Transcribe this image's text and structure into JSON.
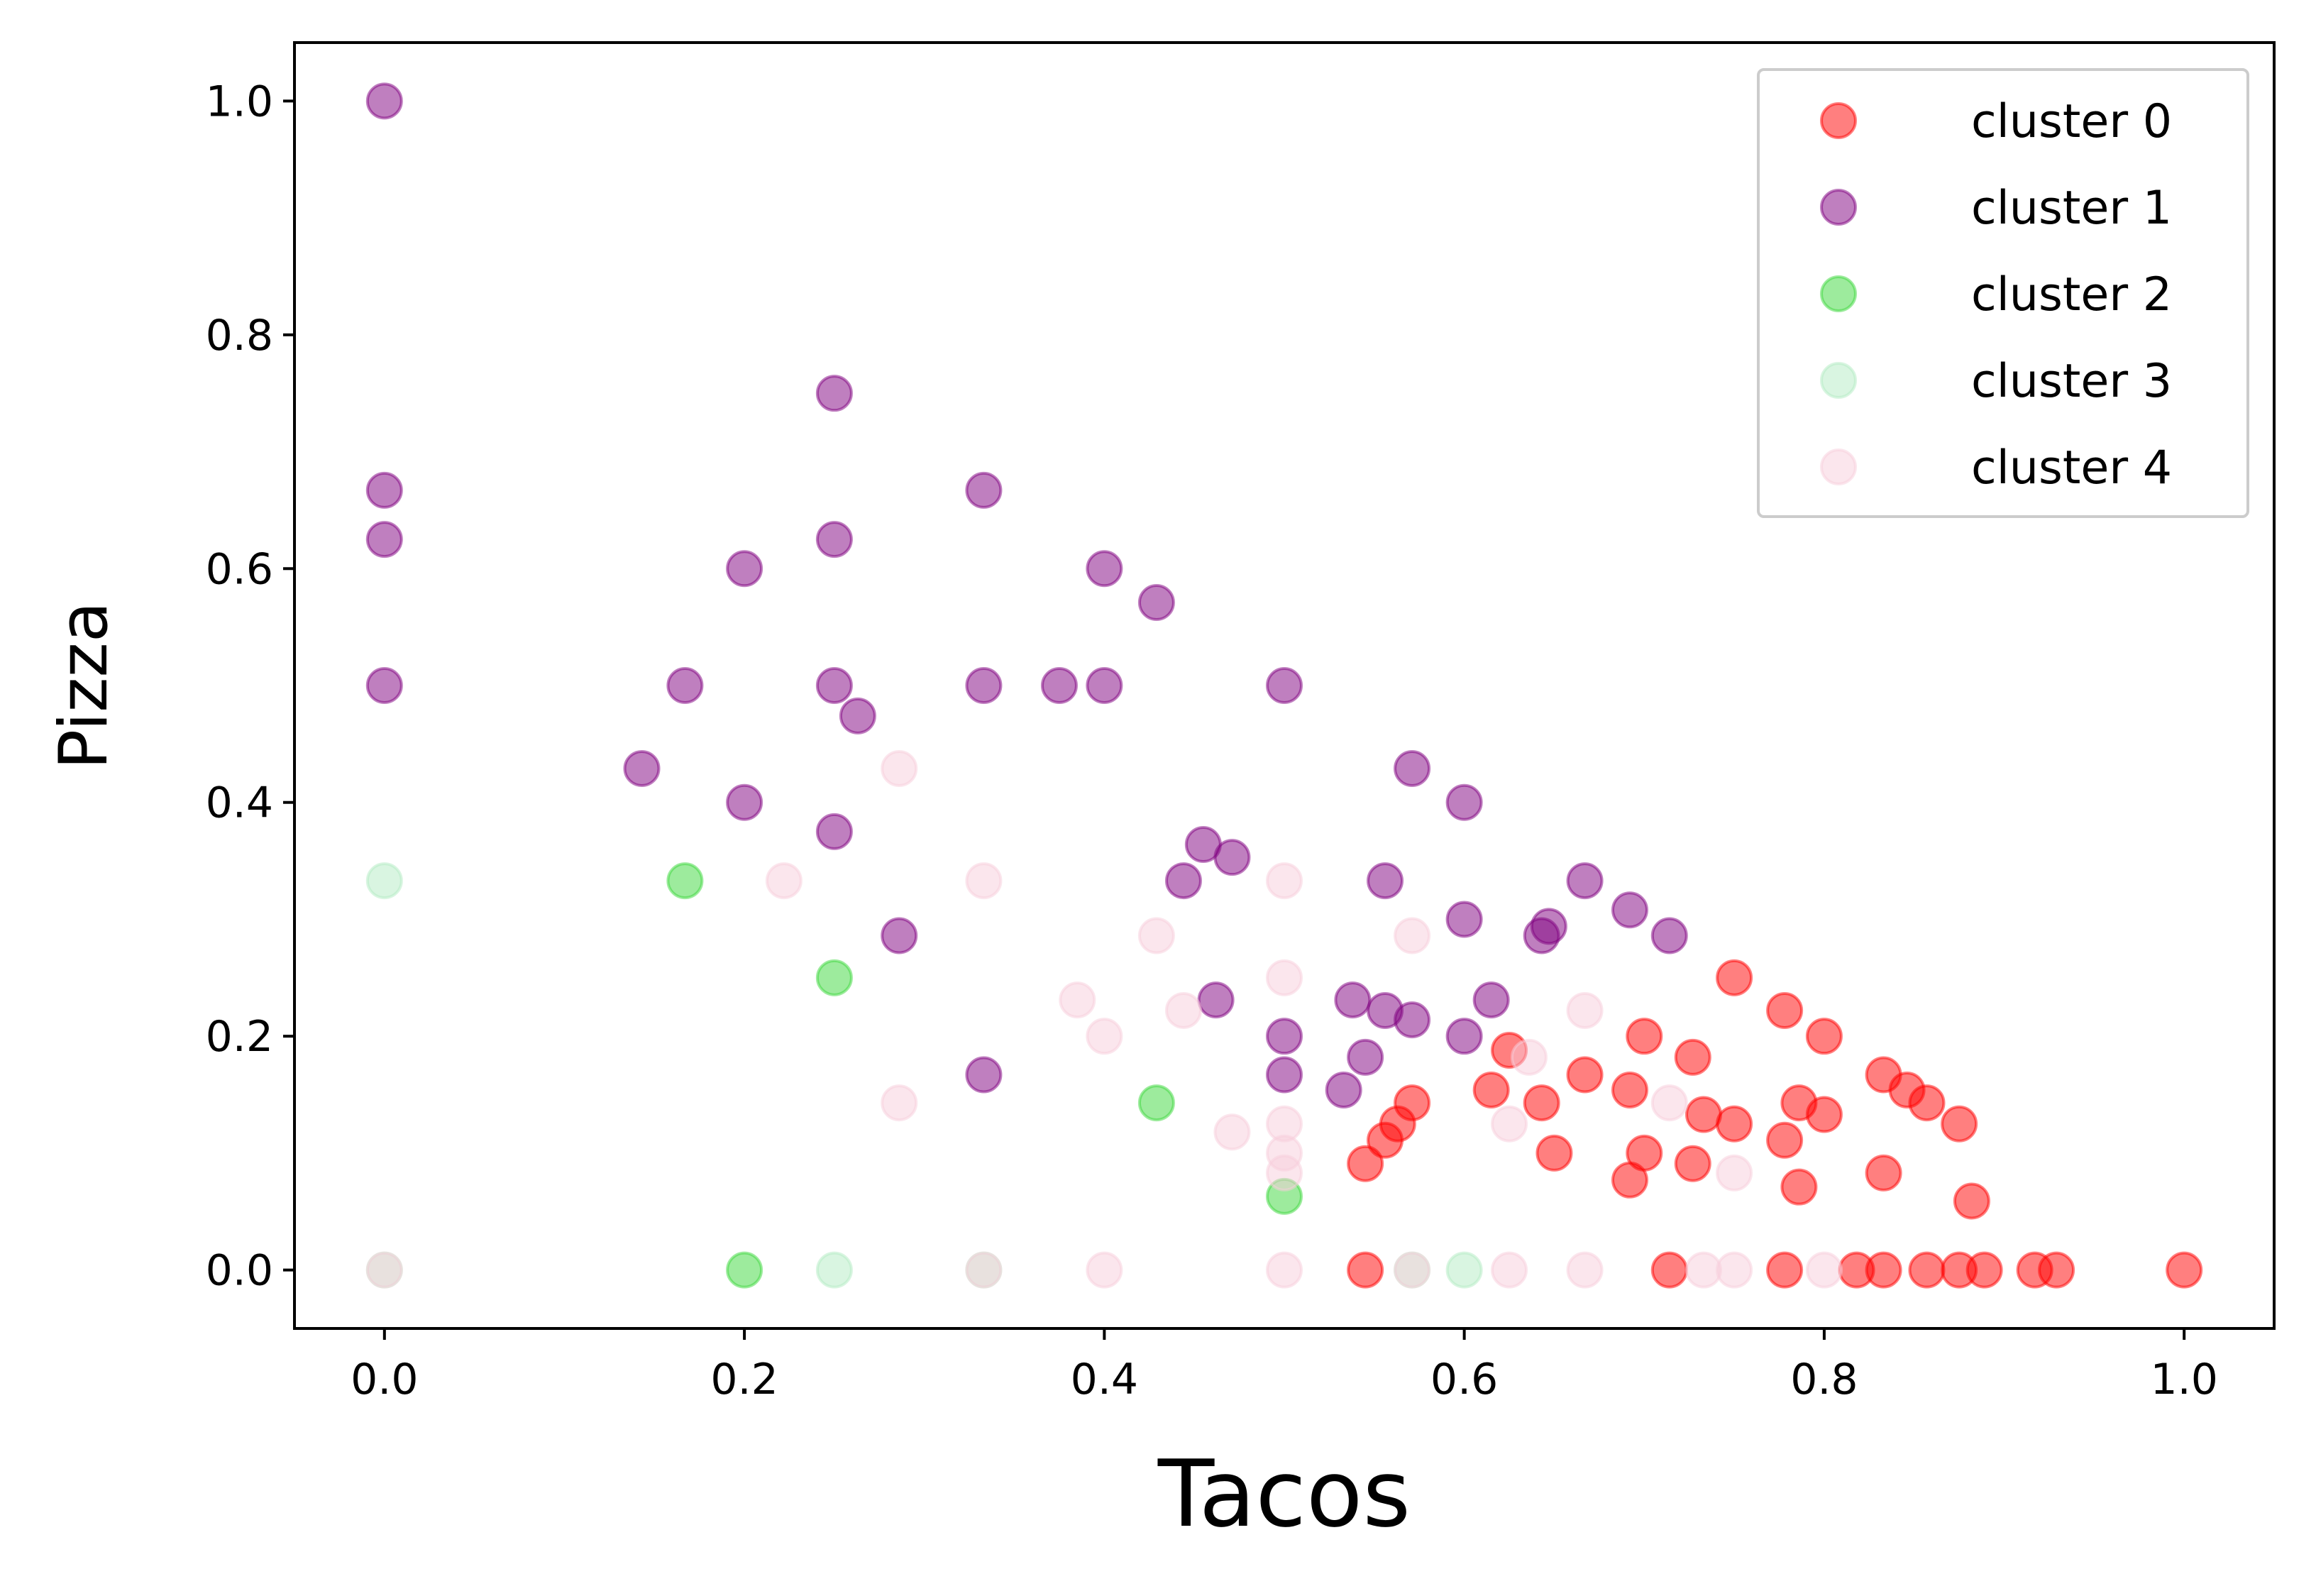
{
  "chart_data": {
    "type": "scatter",
    "title": "",
    "xlabel": "Tacos",
    "ylabel": "Pizza",
    "xlim": [
      -0.05,
      1.05
    ],
    "ylim": [
      -0.05,
      1.05
    ],
    "xticks": [
      "0.0",
      "0.2",
      "0.4",
      "0.6",
      "0.8",
      "1.0"
    ],
    "yticks": [
      "0.0",
      "0.2",
      "0.4",
      "0.6",
      "0.8",
      "1.0"
    ],
    "grid": false,
    "legend_position": "top-right",
    "series": [
      {
        "name": "cluster 0",
        "color": "#ff0000",
        "points": [
          [
            0.545,
            0.091
          ],
          [
            0.556,
            0.111
          ],
          [
            0.563,
            0.125
          ],
          [
            0.571,
            0.143
          ],
          [
            0.625,
            0.188
          ],
          [
            0.615,
            0.154
          ],
          [
            0.643,
            0.143
          ],
          [
            0.65,
            0.1
          ],
          [
            0.667,
            0.167
          ],
          [
            0.692,
            0.154
          ],
          [
            0.7,
            0.2
          ],
          [
            0.692,
            0.077
          ],
          [
            0.7,
            0.1
          ],
          [
            0.727,
            0.182
          ],
          [
            0.733,
            0.133
          ],
          [
            0.727,
            0.091
          ],
          [
            0.75,
            0.25
          ],
          [
            0.75,
            0.125
          ],
          [
            0.778,
            0.222
          ],
          [
            0.778,
            0.111
          ],
          [
            0.786,
            0.143
          ],
          [
            0.8,
            0.2
          ],
          [
            0.8,
            0.133
          ],
          [
            0.786,
            0.071
          ],
          [
            0.833,
            0.167
          ],
          [
            0.846,
            0.154
          ],
          [
            0.857,
            0.143
          ],
          [
            0.833,
            0.083
          ],
          [
            0.875,
            0.125
          ],
          [
            0.882,
            0.059
          ],
          [
            0.545,
            0.0
          ],
          [
            0.714,
            0.0
          ],
          [
            0.778,
            0.0
          ],
          [
            0.818,
            0.0
          ],
          [
            0.833,
            0.0
          ],
          [
            0.857,
            0.0
          ],
          [
            0.875,
            0.0
          ],
          [
            0.889,
            0.0
          ],
          [
            0.917,
            0.0
          ],
          [
            0.929,
            0.0
          ],
          [
            1.0,
            0.0
          ]
        ]
      },
      {
        "name": "cluster 1",
        "color": "#800080",
        "points": [
          [
            0.0,
            1.0
          ],
          [
            0.0,
            0.667
          ],
          [
            0.0,
            0.625
          ],
          [
            0.0,
            0.5
          ],
          [
            0.25,
            0.75
          ],
          [
            0.25,
            0.625
          ],
          [
            0.333,
            0.667
          ],
          [
            0.2,
            0.6
          ],
          [
            0.4,
            0.6
          ],
          [
            0.429,
            0.571
          ],
          [
            0.167,
            0.5
          ],
          [
            0.25,
            0.5
          ],
          [
            0.333,
            0.5
          ],
          [
            0.375,
            0.5
          ],
          [
            0.4,
            0.5
          ],
          [
            0.5,
            0.5
          ],
          [
            0.263,
            0.474
          ],
          [
            0.143,
            0.429
          ],
          [
            0.2,
            0.4
          ],
          [
            0.25,
            0.375
          ],
          [
            0.571,
            0.429
          ],
          [
            0.6,
            0.4
          ],
          [
            0.455,
            0.364
          ],
          [
            0.471,
            0.353
          ],
          [
            0.444,
            0.333
          ],
          [
            0.556,
            0.333
          ],
          [
            0.667,
            0.333
          ],
          [
            0.6,
            0.3
          ],
          [
            0.647,
            0.294
          ],
          [
            0.643,
            0.286
          ],
          [
            0.286,
            0.286
          ],
          [
            0.714,
            0.286
          ],
          [
            0.692,
            0.308
          ],
          [
            0.462,
            0.231
          ],
          [
            0.538,
            0.231
          ],
          [
            0.615,
            0.231
          ],
          [
            0.556,
            0.222
          ],
          [
            0.571,
            0.214
          ],
          [
            0.6,
            0.2
          ],
          [
            0.5,
            0.2
          ],
          [
            0.545,
            0.182
          ],
          [
            0.5,
            0.167
          ],
          [
            0.333,
            0.167
          ],
          [
            0.533,
            0.154
          ]
        ]
      },
      {
        "name": "cluster 2",
        "color": "#3cd73c",
        "points": [
          [
            0.167,
            0.333
          ],
          [
            0.25,
            0.25
          ],
          [
            0.429,
            0.143
          ],
          [
            0.5,
            0.063
          ],
          [
            0.2,
            0.0
          ]
        ]
      },
      {
        "name": "cluster 3",
        "color": "#b4ecc3",
        "points": [
          [
            0.0,
            0.333
          ],
          [
            0.0,
            0.0
          ],
          [
            0.25,
            0.0
          ],
          [
            0.333,
            0.0
          ],
          [
            0.571,
            0.0
          ],
          [
            0.6,
            0.0
          ]
        ]
      },
      {
        "name": "cluster 4",
        "color": "#f8cddb",
        "points": [
          [
            0.286,
            0.429
          ],
          [
            0.222,
            0.333
          ],
          [
            0.333,
            0.333
          ],
          [
            0.5,
            0.333
          ],
          [
            0.429,
            0.286
          ],
          [
            0.571,
            0.286
          ],
          [
            0.5,
            0.25
          ],
          [
            0.385,
            0.231
          ],
          [
            0.444,
            0.222
          ],
          [
            0.667,
            0.222
          ],
          [
            0.4,
            0.2
          ],
          [
            0.636,
            0.182
          ],
          [
            0.714,
            0.143
          ],
          [
            0.286,
            0.143
          ],
          [
            0.5,
            0.125
          ],
          [
            0.625,
            0.125
          ],
          [
            0.471,
            0.118
          ],
          [
            0.5,
            0.1
          ],
          [
            0.5,
            0.083
          ],
          [
            0.75,
            0.083
          ],
          [
            0.0,
            0.0
          ],
          [
            0.333,
            0.0
          ],
          [
            0.4,
            0.0
          ],
          [
            0.5,
            0.0
          ],
          [
            0.571,
            0.0
          ],
          [
            0.625,
            0.0
          ],
          [
            0.667,
            0.0
          ],
          [
            0.733,
            0.0
          ],
          [
            0.75,
            0.0
          ],
          [
            0.8,
            0.0
          ]
        ]
      }
    ]
  }
}
